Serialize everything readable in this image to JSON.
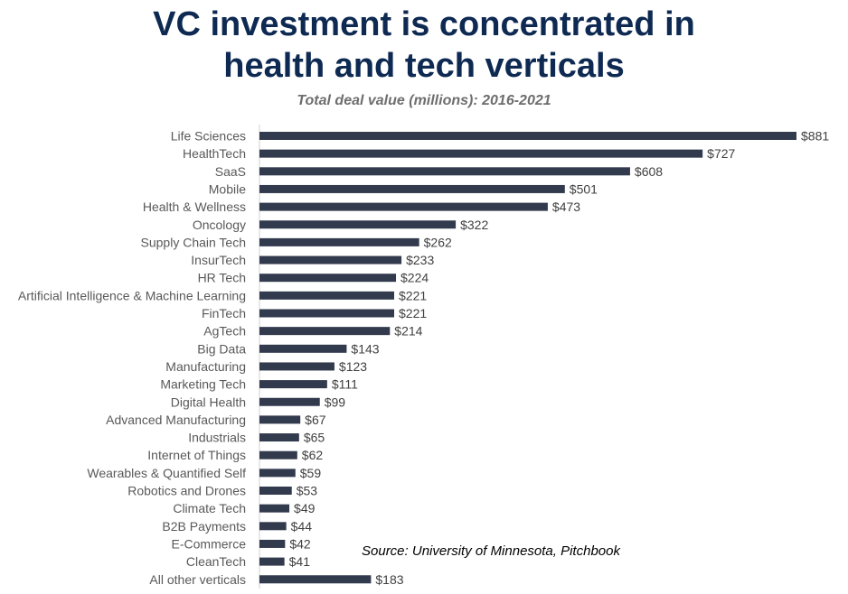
{
  "title_lines": [
    "VC investment is concentrated in",
    "health and tech verticals"
  ],
  "subtitle": "Total deal value (millions): 2016-2021",
  "source": "Source: University of Minnesota, Pitchbook",
  "colors": {
    "bar": "#323a4d",
    "title": "#0e2a52"
  },
  "chart_data": {
    "type": "bar",
    "orientation": "horizontal",
    "title": "VC investment is concentrated in health and tech verticals",
    "subtitle": "Total deal value (millions): 2016-2021",
    "xlabel": "",
    "ylabel": "",
    "xlim": [
      0,
      881
    ],
    "grid": false,
    "categories": [
      "Life Sciences",
      "HealthTech",
      "SaaS",
      "Mobile",
      "Health & Wellness",
      "Oncology",
      "Supply Chain Tech",
      "InsurTech",
      "HR Tech",
      "Artificial Intelligence & Machine Learning",
      "FinTech",
      "AgTech",
      "Big Data",
      "Manufacturing",
      "Marketing Tech",
      "Digital Health",
      "Advanced Manufacturing",
      "Industrials",
      "Internet of Things",
      "Wearables & Quantified Self",
      "Robotics and Drones",
      "Climate Tech",
      "B2B Payments",
      "E-Commerce",
      "CleanTech",
      "All other verticals"
    ],
    "values": [
      881,
      727,
      608,
      501,
      473,
      322,
      262,
      233,
      224,
      221,
      221,
      214,
      143,
      123,
      111,
      99,
      67,
      65,
      62,
      59,
      53,
      49,
      44,
      42,
      41,
      183
    ],
    "value_labels": [
      "$881",
      "$727",
      "$608",
      "$501",
      "$473",
      "$322",
      "$262",
      "$233",
      "$224",
      "$221",
      "$221",
      "$214",
      "$143",
      "$123",
      "$111",
      "$99",
      "$67",
      "$65",
      "$62",
      "$59",
      "$53",
      "$49",
      "$44",
      "$42",
      "$41",
      "$183"
    ]
  }
}
